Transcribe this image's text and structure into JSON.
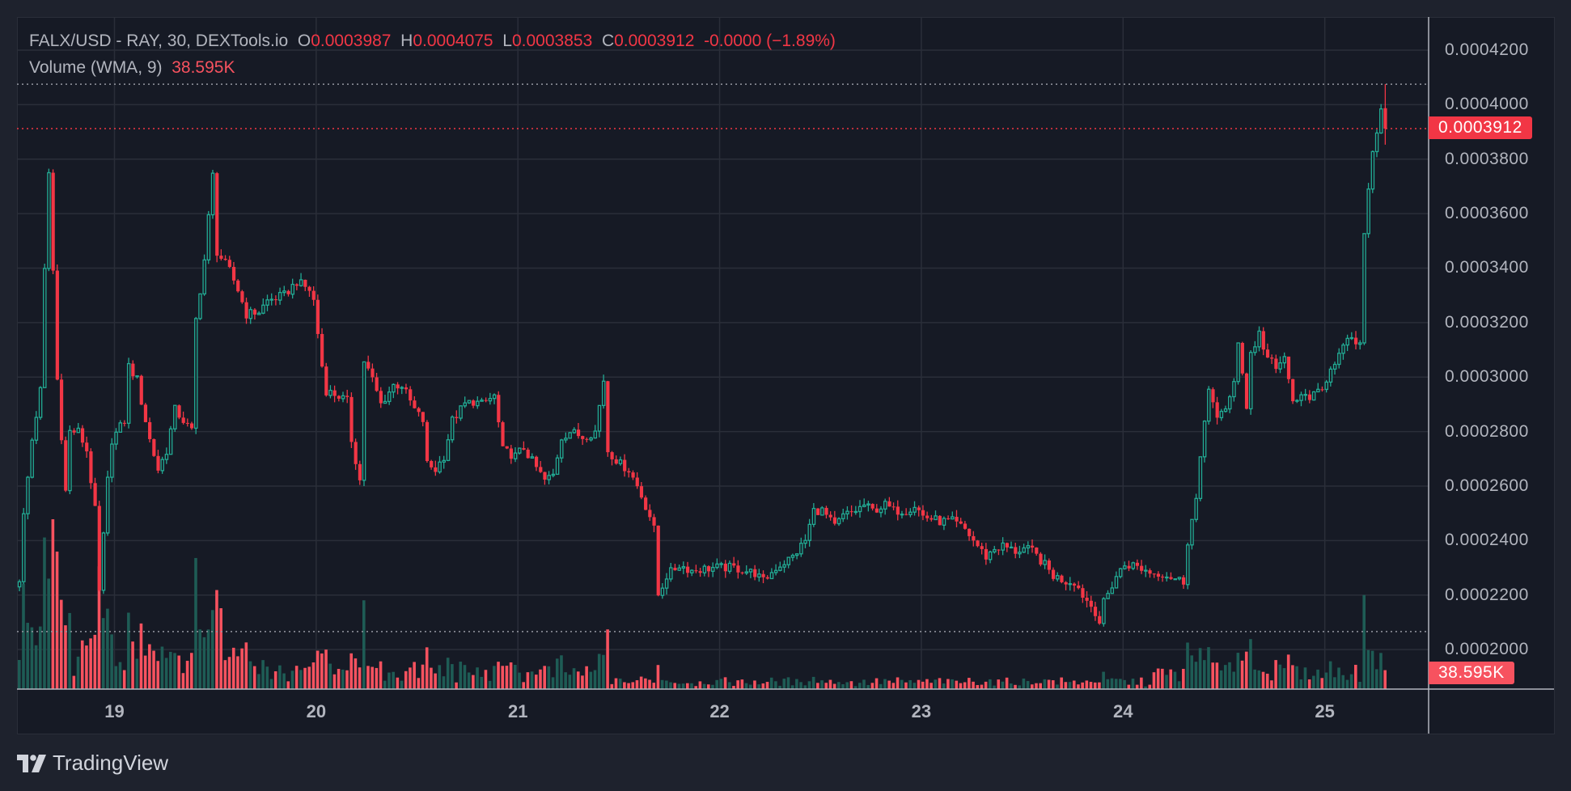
{
  "legend": {
    "symbol": "FALX/USD - RAY, 30, DEXTools.io",
    "o_label": "O",
    "o_value": "0.0003987",
    "h_label": "H",
    "h_value": "0.0004075",
    "l_label": "L",
    "l_value": "0.0003853",
    "c_label": "C",
    "c_value": "0.0003912",
    "change": "-0.0000 (−1.89%)",
    "volume_label": "Volume (WMA, 9)",
    "volume_value": "38.595K"
  },
  "price_axis": [
    "0.0004200",
    "0.0004000",
    "0.0003800",
    "0.0003600",
    "0.0003400",
    "0.0003200",
    "0.0003000",
    "0.0002800",
    "0.0002600",
    "0.0002400",
    "0.0002200",
    "0.0002000"
  ],
  "badges": {
    "close": "0.0003912",
    "volume": "38.595K"
  },
  "branding": "TradingView",
  "colors": {
    "up": "#22ab94",
    "down": "#f23645",
    "vol_up": "#1e5c55",
    "vol_down": "#f7525f",
    "grid": "#2a2e39",
    "bg": "#161a25"
  },
  "chart_data": {
    "type": "candlestick",
    "title": "FALX/USD - RAY, 30, DEXTools.io",
    "interval_minutes": 30,
    "bar_count": 326,
    "ylim": [
      0.0002,
      0.00042
    ],
    "grid": true,
    "x_ticks": [
      {
        "label": "19",
        "bar": 23
      },
      {
        "label": "20",
        "bar": 71
      },
      {
        "label": "21",
        "bar": 119
      },
      {
        "label": "22",
        "bar": 167
      },
      {
        "label": "23",
        "bar": 215
      },
      {
        "label": "24",
        "bar": 263
      },
      {
        "label": "25",
        "bar": 311
      }
    ],
    "period_high": 0.0004075,
    "period_low": 0.0002066,
    "last_candle": {
      "open": 0.0003987,
      "high": 0.0004075,
      "low": 0.0003853,
      "close": 0.0003912
    },
    "close_path": [
      [
        0,
        0.000226
      ],
      [
        1,
        0.000249
      ],
      [
        3,
        0.000277
      ],
      [
        5,
        0.000295
      ],
      [
        6,
        0.000339
      ],
      [
        7,
        0.000375
      ],
      [
        8,
        0.000339
      ],
      [
        9,
        0.000299
      ],
      [
        11,
        0.000258
      ],
      [
        12,
        0.00028
      ],
      [
        14,
        0.00028
      ],
      [
        16,
        0.000273
      ],
      [
        18,
        0.000251
      ],
      [
        19,
        0.000221
      ],
      [
        21,
        0.000262
      ],
      [
        22,
        0.000277
      ],
      [
        25,
        0.000284
      ],
      [
        26,
        0.000304
      ],
      [
        28,
        0.000299
      ],
      [
        29,
        0.000291
      ],
      [
        31,
        0.000277
      ],
      [
        33,
        0.000266
      ],
      [
        35,
        0.000273
      ],
      [
        37,
        0.000288
      ],
      [
        39,
        0.000284
      ],
      [
        41,
        0.00028
      ],
      [
        42,
        0.000321
      ],
      [
        44,
        0.000343
      ],
      [
        46,
        0.000374
      ],
      [
        47,
        0.000346
      ],
      [
        50,
        0.000339
      ],
      [
        52,
        0.000332
      ],
      [
        54,
        0.000323
      ],
      [
        57,
        0.000324
      ],
      [
        59,
        0.000328
      ],
      [
        63,
        0.00033
      ],
      [
        66,
        0.000335
      ],
      [
        69,
        0.000332
      ],
      [
        70,
        0.000328
      ],
      [
        72,
        0.000304
      ],
      [
        73,
        0.000295
      ],
      [
        76,
        0.000293
      ],
      [
        78,
        0.000291
      ],
      [
        79,
        0.000277
      ],
      [
        81,
        0.000262
      ],
      [
        82,
        0.000306
      ],
      [
        84,
        0.000299
      ],
      [
        86,
        0.00029
      ],
      [
        89,
        0.000297
      ],
      [
        91,
        0.000297
      ],
      [
        94,
        0.000288
      ],
      [
        96,
        0.000284
      ],
      [
        97,
        0.000268
      ],
      [
        99,
        0.000266
      ],
      [
        101,
        0.000271
      ],
      [
        103,
        0.000284
      ],
      [
        106,
        0.00029
      ],
      [
        108,
        0.000291
      ],
      [
        110,
        0.00029
      ],
      [
        113,
        0.000293
      ],
      [
        115,
        0.000273
      ],
      [
        118,
        0.000271
      ],
      [
        120,
        0.000274
      ],
      [
        122,
        0.000269
      ],
      [
        125,
        0.000262
      ],
      [
        127,
        0.000264
      ],
      [
        129,
        0.000278
      ],
      [
        131,
        0.00028
      ],
      [
        134,
        0.000278
      ],
      [
        137,
        0.00028
      ],
      [
        139,
        0.000299
      ],
      [
        140,
        0.000273
      ],
      [
        143,
        0.000268
      ],
      [
        145,
        0.000266
      ],
      [
        147,
        0.00026
      ],
      [
        150,
        0.000249
      ],
      [
        151,
        0.000244
      ],
      [
        152,
        0.00022
      ],
      [
        154,
        0.000227
      ],
      [
        157,
        0.000231
      ],
      [
        160,
        0.000229
      ],
      [
        165,
        0.00023
      ],
      [
        170,
        0.00023
      ],
      [
        175,
        0.000228
      ],
      [
        177,
        0.000225
      ],
      [
        180,
        0.00023
      ],
      [
        182,
        0.000232
      ],
      [
        184,
        0.000234
      ],
      [
        187,
        0.00024
      ],
      [
        189,
        0.000251
      ],
      [
        191,
        0.000251
      ],
      [
        194,
        0.000245
      ],
      [
        196,
        0.000249
      ],
      [
        199,
        0.000251
      ],
      [
        201,
        0.000253
      ],
      [
        203,
        0.000251
      ],
      [
        206,
        0.000253
      ],
      [
        208,
        0.000251
      ],
      [
        211,
        0.000251
      ],
      [
        213,
        0.000253
      ],
      [
        215,
        0.000249
      ],
      [
        219,
        0.000247
      ],
      [
        222,
        0.000247
      ],
      [
        225,
        0.000244
      ],
      [
        227,
        0.00024
      ],
      [
        230,
        0.000234
      ],
      [
        232,
        0.000237
      ],
      [
        234,
        0.000238
      ],
      [
        237,
        0.000236
      ],
      [
        239,
        0.000237
      ],
      [
        241,
        0.000236
      ],
      [
        244,
        0.000231
      ],
      [
        246,
        0.000227
      ],
      [
        249,
        0.000225
      ],
      [
        251,
        0.000225
      ],
      [
        253,
        0.00022
      ],
      [
        256,
        0.000214
      ],
      [
        257,
        0.00021
      ],
      [
        258,
        0.000217
      ],
      [
        261,
        0.000227
      ],
      [
        263,
        0.000231
      ],
      [
        265,
        0.000231
      ],
      [
        268,
        0.000229
      ],
      [
        270,
        0.000228
      ],
      [
        272,
        0.000228
      ],
      [
        275,
        0.000226
      ],
      [
        277,
        0.000225
      ],
      [
        278,
        0.00024
      ],
      [
        280,
        0.000255
      ],
      [
        281,
        0.000269
      ],
      [
        282,
        0.000284
      ],
      [
        283,
        0.000297
      ],
      [
        285,
        0.000284
      ],
      [
        287,
        0.000288
      ],
      [
        289,
        0.000299
      ],
      [
        290,
        0.000312
      ],
      [
        292,
        0.000288
      ],
      [
        293,
        0.00031
      ],
      [
        294,
        0.000312
      ],
      [
        295,
        0.000317
      ],
      [
        296,
        0.00031
      ],
      [
        299,
        0.000304
      ],
      [
        301,
        0.000306
      ],
      [
        303,
        0.000291
      ],
      [
        306,
        0.000293
      ],
      [
        308,
        0.000293
      ],
      [
        310,
        0.000295
      ],
      [
        312,
        0.000304
      ],
      [
        314,
        0.000308
      ],
      [
        317,
        0.000315
      ],
      [
        318,
        0.000311
      ],
      [
        319,
        0.000311
      ],
      [
        320,
        0.000354
      ],
      [
        321,
        0.000369
      ],
      [
        322,
        0.000383
      ],
      [
        323,
        0.000391
      ],
      [
        324,
        0.000399
      ],
      [
        325,
        0.0003912
      ]
    ]
  }
}
